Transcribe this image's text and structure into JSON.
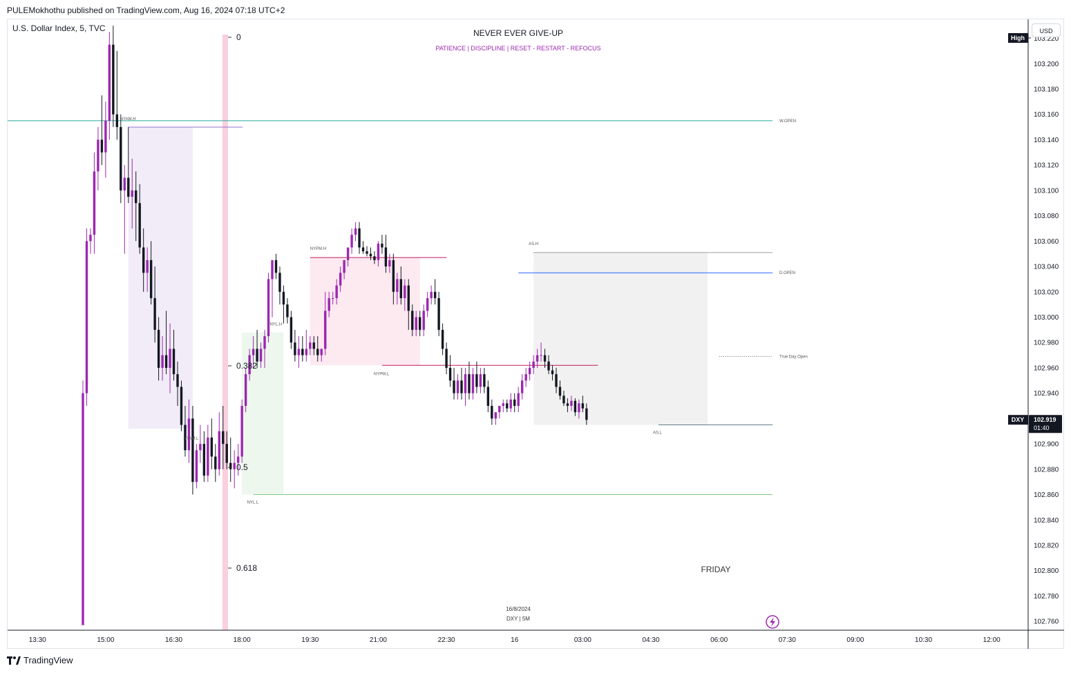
{
  "header": {
    "publisher": "PULEMokhothu published on TradingView.com, Aug 16, 2024 07:18 UTC+2",
    "symbol": "U.S. Dollar Index, 5, TVC"
  },
  "banner": {
    "title": "NEVER EVER GIVE-UP",
    "subtitle": "PATIENCE   |   DISCIPLINE   |   RESET - RESTART - REFOCUS"
  },
  "currency_button": "USD",
  "high_label": "High",
  "price_tag": {
    "symbol": "DXY",
    "price": "102.919",
    "countdown": "01:40"
  },
  "watermark": {
    "date": "16/8/2024",
    "info": "DXY | 5M"
  },
  "day_label": "FRIDAY",
  "footer_logo": "TradingView",
  "colors": {
    "bull": "#9c27b0",
    "bear": "#131722",
    "w_open": "#26a69a",
    "d_open": "#2962ff",
    "nyam_box": "#ede7f6",
    "nypm_box": "#fce4ec",
    "nyl_box": "#e8f5e9",
    "as_box": "#eeeeee",
    "nypm_line": "#c2185b",
    "nyl_line": "#81c784",
    "fib_band": "#f8bbd0"
  },
  "chart_data": {
    "type": "candlestick",
    "y_axis": {
      "range": [
        102.753,
        103.235
      ],
      "ticks": [
        "103.220",
        "103.200",
        "103.180",
        "103.160",
        "103.140",
        "103.120",
        "103.100",
        "103.080",
        "103.060",
        "103.040",
        "103.020",
        "103.000",
        "102.980",
        "102.960",
        "102.940",
        "102.920",
        "102.900",
        "102.880",
        "102.860",
        "102.840",
        "102.820",
        "102.800",
        "102.780",
        "102.760"
      ]
    },
    "x_axis": {
      "ticks": [
        {
          "label": "13:30",
          "i": -12
        },
        {
          "label": "15:00",
          "i": 6
        },
        {
          "label": "16:30",
          "i": 24
        },
        {
          "label": "18:00",
          "i": 42
        },
        {
          "label": "19:30",
          "i": 60
        },
        {
          "label": "21:00",
          "i": 78
        },
        {
          "label": "22:30",
          "i": 96
        },
        {
          "label": "16",
          "i": 114
        },
        {
          "label": "03:00",
          "i": 132
        },
        {
          "label": "04:30",
          "i": 150
        },
        {
          "label": "06:00",
          "i": 168
        },
        {
          "label": "07:30",
          "i": 186
        },
        {
          "label": "09:00",
          "i": 204
        },
        {
          "label": "10:30",
          "i": 222
        },
        {
          "label": "12:00",
          "i": 240
        }
      ]
    },
    "first_bar_time": "14:30",
    "candles": [
      [
        102.757,
        102.95,
        102.757,
        102.94
      ],
      [
        102.94,
        103.07,
        102.93,
        103.06
      ],
      [
        103.06,
        103.07,
        103.05,
        103.065
      ],
      [
        103.065,
        103.13,
        103.05,
        103.115
      ],
      [
        103.115,
        103.15,
        103.1,
        103.14
      ],
      [
        103.14,
        103.175,
        103.12,
        103.13
      ],
      [
        103.13,
        103.17,
        103.11,
        103.155
      ],
      [
        103.155,
        103.225,
        103.14,
        103.215
      ],
      [
        103.215,
        103.23,
        103.15,
        103.16
      ],
      [
        103.16,
        103.21,
        103.14,
        103.15
      ],
      [
        103.15,
        103.16,
        103.09,
        103.1
      ],
      [
        103.1,
        103.12,
        103.05,
        103.11
      ],
      [
        103.11,
        103.15,
        103.09,
        103.095
      ],
      [
        103.095,
        103.125,
        103.07,
        103.1
      ],
      [
        103.1,
        103.115,
        103.06,
        103.09
      ],
      [
        103.09,
        103.105,
        103.05,
        103.055
      ],
      [
        103.055,
        103.07,
        103.02,
        103.035
      ],
      [
        103.035,
        103.055,
        103.02,
        103.045
      ],
      [
        103.045,
        103.06,
        103.01,
        103.015
      ],
      [
        103.015,
        103.04,
        102.98,
        102.99
      ],
      [
        102.99,
        103.0,
        102.95,
        102.96
      ],
      [
        102.96,
        102.985,
        102.95,
        102.97
      ],
      [
        102.97,
        103.005,
        102.955,
        102.96
      ],
      [
        102.96,
        102.995,
        102.94,
        102.975
      ],
      [
        102.975,
        102.99,
        102.95,
        102.955
      ],
      [
        102.955,
        102.965,
        102.93,
        102.945
      ],
      [
        102.945,
        102.95,
        102.91,
        102.915
      ],
      [
        102.915,
        102.93,
        102.89,
        102.895
      ],
      [
        102.895,
        102.935,
        102.885,
        102.92
      ],
      [
        102.92,
        102.93,
        102.86,
        102.87
      ],
      [
        102.87,
        102.9,
        102.865,
        102.895
      ],
      [
        102.895,
        102.915,
        102.885,
        102.9
      ],
      [
        102.9,
        102.91,
        102.87,
        102.875
      ],
      [
        102.875,
        102.915,
        102.87,
        102.905
      ],
      [
        102.905,
        102.92,
        102.88,
        102.89
      ],
      [
        102.89,
        102.9,
        102.87,
        102.88
      ],
      [
        102.88,
        102.925,
        102.875,
        102.91
      ],
      [
        102.91,
        102.93,
        102.88,
        102.9
      ],
      [
        102.9,
        102.91,
        102.88,
        102.885
      ],
      [
        102.885,
        102.905,
        102.87,
        102.88
      ],
      [
        102.88,
        102.895,
        102.865,
        102.885
      ],
      [
        102.885,
        102.9,
        102.875,
        102.89
      ],
      [
        102.89,
        102.935,
        102.885,
        102.93
      ],
      [
        102.93,
        102.96,
        102.925,
        102.955
      ],
      [
        102.955,
        102.975,
        102.95,
        102.97
      ],
      [
        102.97,
        102.985,
        102.96,
        102.975
      ],
      [
        102.975,
        102.99,
        102.96,
        102.965
      ],
      [
        102.965,
        102.98,
        102.96,
        102.975
      ],
      [
        102.975,
        102.99,
        102.96,
        102.985
      ],
      [
        102.985,
        103.035,
        102.98,
        103.03
      ],
      [
        103.03,
        103.045,
        103.0,
        103.045
      ],
      [
        103.045,
        103.05,
        103.03,
        103.035
      ],
      [
        103.035,
        103.04,
        103.01,
        103.02
      ],
      [
        103.02,
        103.025,
        102.995,
        103.01
      ],
      [
        103.01,
        103.015,
        102.995,
        103.0
      ],
      [
        103.0,
        103.005,
        102.975,
        102.98
      ],
      [
        102.98,
        102.99,
        102.965,
        102.97
      ],
      [
        102.97,
        102.985,
        102.96,
        102.975
      ],
      [
        102.975,
        102.985,
        102.965,
        102.97
      ],
      [
        102.97,
        102.99,
        102.965,
        102.975
      ],
      [
        102.975,
        102.985,
        102.97,
        102.98
      ],
      [
        102.98,
        102.985,
        102.97,
        102.975
      ],
      [
        102.975,
        102.985,
        102.965,
        102.97
      ],
      [
        102.97,
        102.975,
        102.965,
        102.975
      ],
      [
        102.975,
        103.02,
        102.97,
        103.005
      ],
      [
        103.005,
        103.02,
        103.0,
        103.015
      ],
      [
        103.015,
        103.02,
        103.01,
        103.015
      ],
      [
        103.015,
        103.03,
        103.01,
        103.025
      ],
      [
        103.025,
        103.04,
        103.02,
        103.035
      ],
      [
        103.035,
        103.045,
        103.03,
        103.045
      ],
      [
        103.045,
        103.055,
        103.04,
        103.055
      ],
      [
        103.055,
        103.07,
        103.05,
        103.065
      ],
      [
        103.065,
        103.075,
        103.06,
        103.07
      ],
      [
        103.07,
        103.075,
        103.05,
        103.055
      ],
      [
        103.055,
        103.06,
        103.05,
        103.052
      ],
      [
        103.052,
        103.056,
        103.048,
        103.05
      ],
      [
        103.05,
        103.055,
        103.045,
        103.048
      ],
      [
        103.048,
        103.052,
        103.042,
        103.045
      ],
      [
        103.045,
        103.06,
        103.04,
        103.058
      ],
      [
        103.058,
        103.065,
        103.05,
        103.055
      ],
      [
        103.055,
        103.065,
        103.035,
        103.04
      ],
      [
        103.04,
        103.05,
        103.035,
        103.045
      ],
      [
        103.045,
        103.05,
        103.01,
        103.02
      ],
      [
        103.02,
        103.035,
        103.01,
        103.03
      ],
      [
        103.03,
        103.04,
        103.01,
        103.015
      ],
      [
        103.015,
        103.03,
        103.005,
        103.025
      ],
      [
        103.025,
        103.03,
        102.99,
        103.005
      ],
      [
        103.005,
        103.01,
        102.985,
        102.99
      ],
      [
        102.99,
        103.005,
        102.985,
        103.0
      ],
      [
        103.0,
        103.005,
        102.985,
        102.99
      ],
      [
        102.99,
        103.01,
        102.985,
        103.005
      ],
      [
        103.005,
        103.02,
        103.0,
        103.015
      ],
      [
        103.015,
        103.025,
        103.01,
        103.02
      ],
      [
        103.02,
        103.03,
        103.01,
        103.015
      ],
      [
        103.015,
        103.02,
        102.985,
        102.99
      ],
      [
        102.99,
        102.995,
        102.97,
        102.975
      ],
      [
        102.975,
        102.98,
        102.955,
        102.96
      ],
      [
        102.96,
        102.97,
        102.945,
        102.95
      ],
      [
        102.95,
        102.96,
        102.935,
        102.94
      ],
      [
        102.94,
        102.955,
        102.935,
        102.95
      ],
      [
        102.95,
        102.96,
        102.935,
        102.94
      ],
      [
        102.94,
        102.96,
        102.93,
        102.955
      ],
      [
        102.955,
        102.965,
        102.935,
        102.94
      ],
      [
        102.94,
        102.96,
        102.935,
        102.955
      ],
      [
        102.955,
        102.965,
        102.94,
        102.945
      ],
      [
        102.945,
        102.96,
        102.94,
        102.955
      ],
      [
        102.955,
        102.96,
        102.94,
        102.945
      ],
      [
        102.945,
        102.95,
        102.925,
        102.93
      ],
      [
        102.93,
        102.935,
        102.915,
        102.92
      ],
      [
        102.92,
        102.925,
        102.915,
        102.925
      ],
      [
        102.925,
        102.93,
        102.92,
        102.93
      ],
      [
        102.93,
        102.935,
        102.925,
        102.932
      ],
      [
        102.932,
        102.935,
        102.925,
        102.928
      ],
      [
        102.928,
        102.94,
        102.925,
        102.935
      ],
      [
        102.935,
        102.94,
        102.925,
        102.93
      ],
      [
        102.93,
        102.945,
        102.925,
        102.94
      ],
      [
        102.94,
        102.955,
        102.935,
        102.95
      ],
      [
        102.95,
        102.96,
        102.945,
        102.955
      ],
      [
        102.955,
        102.965,
        102.95,
        102.96
      ],
      [
        102.96,
        102.97,
        102.955,
        102.965
      ],
      [
        102.965,
        102.975,
        102.96,
        102.97
      ],
      [
        102.97,
        102.98,
        102.965,
        102.97
      ],
      [
        102.97,
        102.975,
        102.96,
        102.965
      ],
      [
        102.965,
        102.97,
        102.955,
        102.958
      ],
      [
        102.958,
        102.962,
        102.95,
        102.955
      ],
      [
        102.955,
        102.96,
        102.94,
        102.945
      ],
      [
        102.945,
        102.95,
        102.935,
        102.938
      ],
      [
        102.938,
        102.942,
        102.93,
        102.932
      ],
      [
        102.932,
        102.936,
        102.925,
        102.93
      ],
      [
        102.93,
        102.938,
        102.926,
        102.934
      ],
      [
        102.934,
        102.936,
        102.922,
        102.925
      ],
      [
        102.925,
        102.935,
        102.92,
        102.932
      ],
      [
        102.932,
        102.938,
        102.925,
        102.928
      ],
      [
        102.928,
        102.932,
        102.915,
        102.919
      ]
    ],
    "levels": [
      {
        "name": "W.OPEN",
        "price": 103.155
      },
      {
        "name": "D.OPEN",
        "price": 103.035
      },
      {
        "name": "True Day Open",
        "price": 102.969
      }
    ],
    "sessions": [
      {
        "name_high": "NYAM.H",
        "name_low": "NYAM.L",
        "high": 103.15,
        "low": 102.912
      },
      {
        "name_high": "NYPM.H",
        "name_low": "NYPM.L",
        "high": 103.047,
        "low": 102.962
      },
      {
        "name_high": "NYL.H",
        "name_low": "NYL.L",
        "high": 102.988,
        "low": 102.86
      },
      {
        "name_high": "AS.H",
        "name_low": "AS.L",
        "high": 103.051,
        "low": 102.915
      }
    ],
    "fib_levels": [
      "0",
      "0.382",
      "0.5",
      "0.618"
    ]
  }
}
